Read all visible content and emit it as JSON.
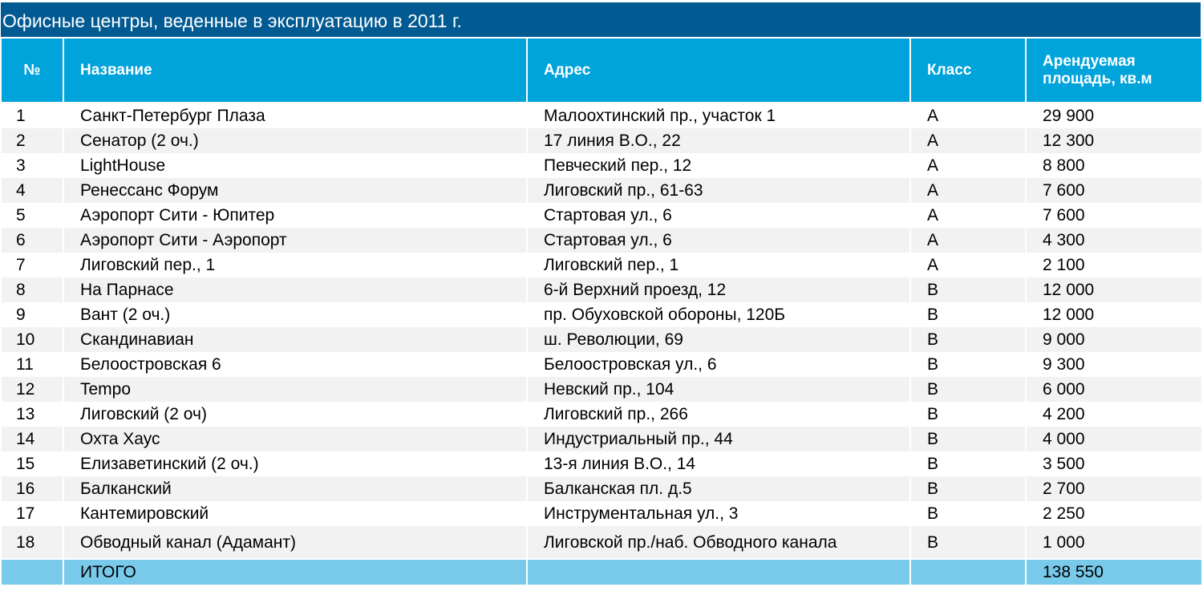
{
  "title": "Офисные центры, веденные в эксплуатацию в 2011 г.",
  "colors": {
    "title_bg": "#015a92",
    "header_bg": "#00a3da",
    "total_bg": "#78c9ea",
    "stripe": "#f2f2f2"
  },
  "headers": [
    "№",
    "Название",
    "Адрес",
    "Класс",
    "Арендуемая площадь, кв.м"
  ],
  "rows": [
    [
      "1",
      "Санкт-Петербург Плаза",
      "Малоохтинский пр., участок 1",
      "A",
      "29 900"
    ],
    [
      "2",
      "Сенатор (2 оч.)",
      "17 линия В.О., 22",
      "A",
      "12 300"
    ],
    [
      "3",
      "LightHouse",
      "Певческий пер., 12",
      "A",
      "8 800"
    ],
    [
      "4",
      "Ренессанс Форум",
      "Лиговский пр., 61-63",
      "A",
      "7 600"
    ],
    [
      "5",
      "Аэропорт Сити - Юпитер",
      "Стартовая ул., 6",
      "A",
      "7 600"
    ],
    [
      "6",
      "Аэропорт Сити - Аэропорт",
      "Стартовая ул., 6",
      "A",
      "4 300"
    ],
    [
      "7",
      "Лиговский пер., 1",
      "Лиговский пер., 1",
      "A",
      "2 100"
    ],
    [
      "8",
      "На Парнасе",
      "6-й Верхний проезд, 12",
      "B",
      "12 000"
    ],
    [
      "9",
      "Вант (2 оч.)",
      "пр. Обуховской обороны, 120Б",
      "B",
      "12 000"
    ],
    [
      "10",
      "Скандинавиан",
      "ш. Революции, 69",
      "B",
      "9 000"
    ],
    [
      "11",
      "Белоостровская 6",
      "Белоостровская ул., 6",
      "B",
      "9 300"
    ],
    [
      "12",
      "Tempo",
      "Невский пр., 104",
      "B",
      "6 000"
    ],
    [
      "13",
      "Лиговский (2 оч)",
      "Лиговский пр., 266",
      "B",
      "4 200"
    ],
    [
      "14",
      "Охта Хаус",
      "Индустриальный пр., 44",
      "B",
      "4 000"
    ],
    [
      "15",
      "Елизаветинский (2 оч.)",
      "13-я линия В.О., 14",
      "B",
      "3 500"
    ],
    [
      "16",
      "Балканский",
      "Балканская пл. д.5",
      "B",
      "2 700"
    ],
    [
      "17",
      "Кантемировский",
      "Инструментальная ул., 3",
      "B",
      "2 250"
    ],
    [
      "18",
      "Обводный канал (Адамант)",
      "Лиговской пр./наб. Обводного канала",
      "B",
      "1 000"
    ]
  ],
  "total": {
    "label": "ИТОГО",
    "value": "138 550"
  }
}
